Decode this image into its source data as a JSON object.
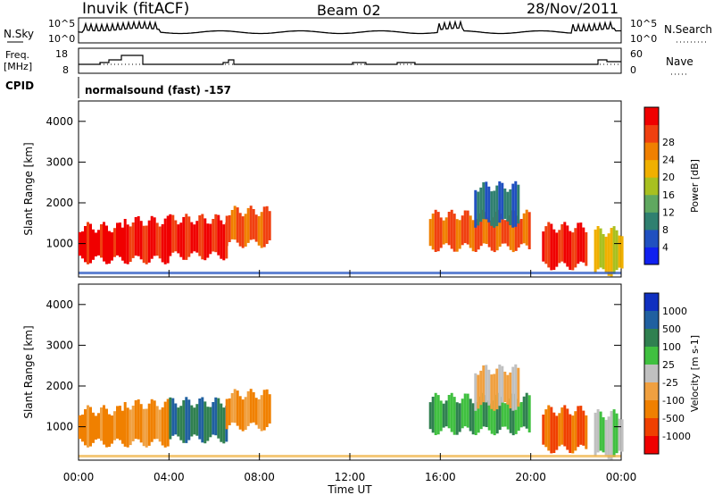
{
  "header": {
    "station": "Inuvik (fitACF)",
    "beam": "Beam 02",
    "date": "28/Nov/2011"
  },
  "panels": {
    "sky": {
      "left_label": "N.Sky",
      "right_label": "N.Search",
      "ticks_left": [
        "10^5",
        "10^0"
      ],
      "ticks_right": [
        "10^5",
        "10^0"
      ]
    },
    "freq": {
      "left_label_1": "Freq.",
      "left_label_2": "[MHz]",
      "right_label": "Nave",
      "ticks_left": [
        "18",
        "8"
      ],
      "ticks_right": [
        "60",
        "0"
      ]
    },
    "cpid": {
      "label": "CPID",
      "text": "normalsound (fast) -157"
    }
  },
  "chart_data": [
    {
      "type": "heatmap",
      "title": "",
      "xlabel": "Time UT",
      "ylabel": "Slant Range [km]",
      "x_ticks": [
        "00:00",
        "04:00",
        "08:00",
        "12:00",
        "16:00",
        "20:00",
        "00:00"
      ],
      "y_ticks": [
        "1000",
        "2000",
        "3000",
        "4000"
      ],
      "xlim_hours": [
        0,
        24
      ],
      "ylim_km": [
        180,
        4500
      ],
      "colorbar": {
        "label": "Power [dB]",
        "ticks": [
          "4",
          "8",
          "12",
          "16",
          "20",
          "24",
          "28"
        ],
        "colors": [
          "#1020f0",
          "#2050c0",
          "#308070",
          "#60a860",
          "#a8c020",
          "#f0b000",
          "#f08000",
          "#f04010",
          "#f00000"
        ]
      },
      "regions": [
        {
          "t0": 0.0,
          "t1": 2.0,
          "r0": 600,
          "r1": 1400,
          "level": 8
        },
        {
          "t0": 2.0,
          "t1": 4.0,
          "r0": 600,
          "r1": 1550,
          "level": 8
        },
        {
          "t0": 4.0,
          "t1": 6.5,
          "r0": 700,
          "r1": 1600,
          "level": 8
        },
        {
          "t0": 6.5,
          "t1": 8.5,
          "r0": 1000,
          "r1": 1800,
          "level": 7
        },
        {
          "t0": 15.5,
          "t1": 20.0,
          "r0": 900,
          "r1": 1700,
          "level": 7
        },
        {
          "t0": 17.5,
          "t1": 19.5,
          "r0": 1500,
          "r1": 2400,
          "level": 2
        },
        {
          "t0": 20.5,
          "t1": 22.5,
          "r0": 450,
          "r1": 1400,
          "level": 8
        },
        {
          "t0": 22.8,
          "t1": 24.0,
          "r0": 300,
          "r1": 1300,
          "level": 5
        }
      ]
    },
    {
      "type": "heatmap",
      "title": "",
      "xlabel": "Time UT",
      "ylabel": "Slant Range [km]",
      "x_ticks": [
        "00:00",
        "04:00",
        "08:00",
        "12:00",
        "16:00",
        "20:00",
        "00:00"
      ],
      "y_ticks": [
        "1000",
        "2000",
        "3000",
        "4000"
      ],
      "xlim_hours": [
        0,
        24
      ],
      "ylim_km": [
        180,
        4500
      ],
      "colorbar": {
        "label": "Velocity [m s-1]",
        "ticks": [
          "1000",
          "500",
          "100",
          "25",
          "-25",
          "-100",
          "-500",
          "-1000"
        ],
        "colors": [
          "#1030c0",
          "#2060a0",
          "#308050",
          "#40c040",
          "#c0c0c0",
          "#f0a040",
          "#f08000",
          "#f04000",
          "#f00000"
        ]
      },
      "regions": [
        {
          "t0": 0.0,
          "t1": 2.0,
          "r0": 600,
          "r1": 1400,
          "level": 6
        },
        {
          "t0": 2.0,
          "t1": 4.0,
          "r0": 600,
          "r1": 1550,
          "level": 6
        },
        {
          "t0": 4.0,
          "t1": 6.5,
          "r0": 700,
          "r1": 1600,
          "level": 2
        },
        {
          "t0": 6.5,
          "t1": 8.5,
          "r0": 1000,
          "r1": 1800,
          "level": 6
        },
        {
          "t0": 15.5,
          "t1": 20.0,
          "r0": 900,
          "r1": 1700,
          "level": 3
        },
        {
          "t0": 17.5,
          "t1": 19.5,
          "r0": 1500,
          "r1": 2400,
          "level": 5
        },
        {
          "t0": 20.5,
          "t1": 22.5,
          "r0": 450,
          "r1": 1400,
          "level": 7
        },
        {
          "t0": 22.8,
          "t1": 24.0,
          "r0": 300,
          "r1": 1300,
          "level": 4
        }
      ]
    }
  ]
}
